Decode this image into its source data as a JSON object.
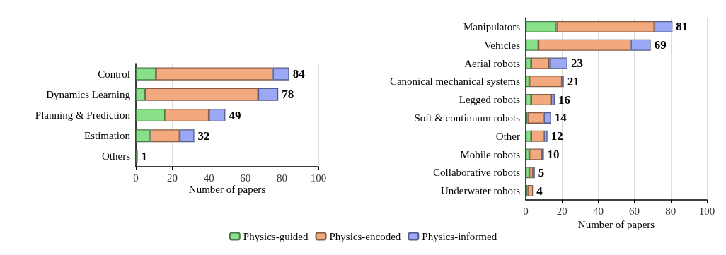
{
  "chart_data": [
    {
      "type": "bar",
      "orientation": "horizontal",
      "stacked": true,
      "categories": [
        "Control",
        "Dynamics Learning",
        "Planning & Prediction",
        "Estimation",
        "Others"
      ],
      "series": [
        {
          "color": "#88e088",
          "values": [
            11,
            5,
            16,
            8,
            1
          ]
        },
        {
          "color": "#f2a97e",
          "values": [
            64,
            62,
            24,
            16,
            0
          ]
        },
        {
          "color": "#9aa8f5",
          "values": [
            9,
            11,
            9,
            8,
            0
          ]
        }
      ],
      "totals": [
        "84",
        "78",
        "49",
        "32",
        "1"
      ],
      "xlabel": "Number of papers",
      "xlim": [
        0,
        100
      ],
      "xticks": [
        0,
        20,
        40,
        60,
        80,
        100
      ],
      "grid": "x"
    },
    {
      "type": "bar",
      "orientation": "horizontal",
      "stacked": true,
      "categories": [
        "Manipulators",
        "Vehicles",
        "Aerial robots",
        "Canonical mechanical systems",
        "Legged robots",
        "Soft & continuum robots",
        "Other",
        "Mobile robots",
        "Collaborative robots",
        "Underwater robots"
      ],
      "series": [
        {
          "name": "Physics-guided",
          "color": "#88e088",
          "values": [
            17,
            7,
            3,
            2,
            3,
            1,
            3,
            2,
            2,
            1
          ]
        },
        {
          "name": "Physics-encoded",
          "color": "#f2a97e",
          "values": [
            54,
            51,
            10,
            18,
            11,
            9,
            7,
            7,
            2,
            3
          ]
        },
        {
          "name": "Physics-informed",
          "color": "#9aa8f5",
          "values": [
            10,
            11,
            10,
            1,
            2,
            4,
            2,
            1,
            1,
            0
          ]
        }
      ],
      "totals": [
        "81",
        "69",
        "23",
        "21",
        "16",
        "14",
        "12",
        "10",
        "5",
        "4"
      ],
      "xlabel": "Number of papers",
      "xlim": [
        0,
        100
      ],
      "xticks": [
        0,
        20,
        40,
        60,
        80,
        100
      ],
      "grid": "x",
      "legend": "bottom"
    }
  ]
}
